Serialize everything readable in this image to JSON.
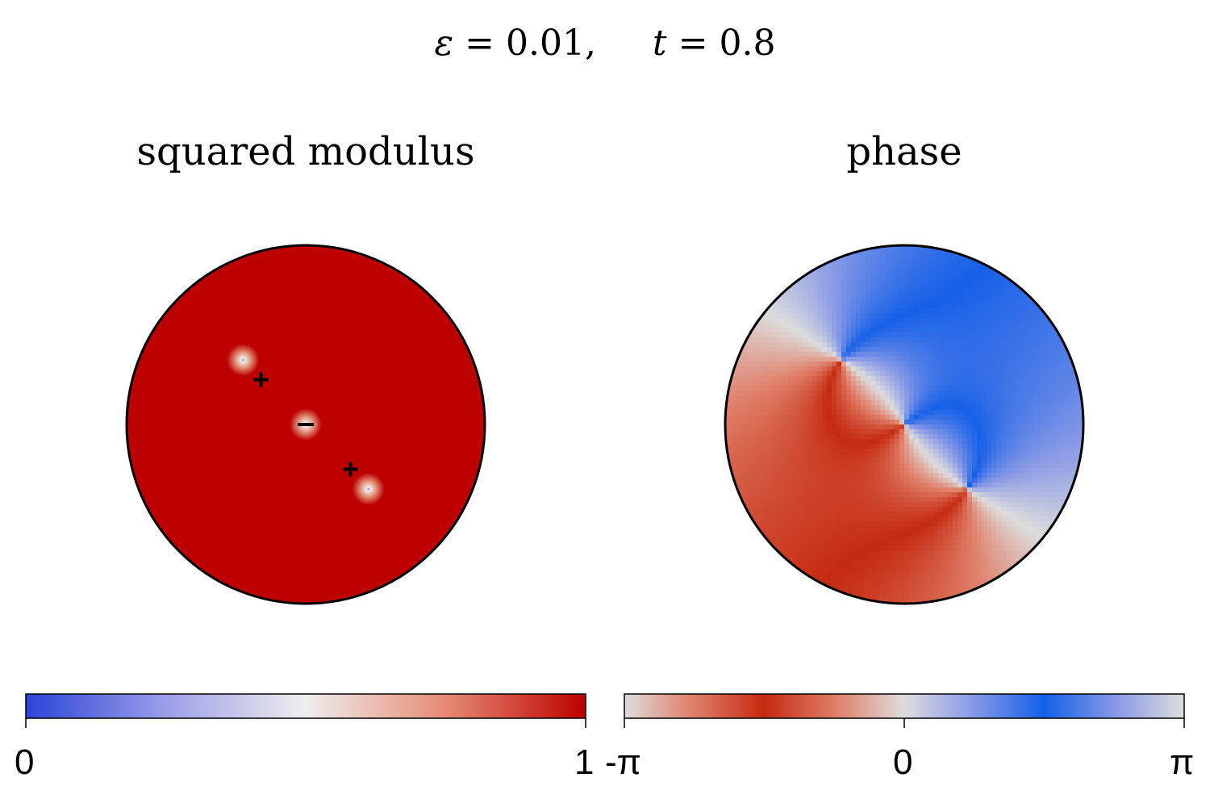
{
  "title": {
    "eps_symbol": "ε",
    "eps_value": "0.01,",
    "t_symbol": "t",
    "t_value": "0.8",
    "equals": "="
  },
  "chart_data": [
    {
      "type": "heatmap",
      "title": "squared modulus",
      "domain": "disk",
      "colorbar": {
        "range": [
          0,
          1
        ],
        "ticks": [
          0,
          1
        ],
        "tick_labels": [
          "0",
          "1"
        ],
        "colors": [
          "#2a44d8",
          "#eeeeee",
          "#bd0000"
        ]
      },
      "vortices": [
        {
          "x": -0.35,
          "y": 0.36,
          "marker": "none"
        },
        {
          "x": -0.25,
          "y": 0.25,
          "marker": "+"
        },
        {
          "x": 0.0,
          "y": 0.0,
          "marker": "−"
        },
        {
          "x": 0.25,
          "y": -0.25,
          "marker": "+"
        },
        {
          "x": 0.35,
          "y": -0.36,
          "marker": "none"
        }
      ]
    },
    {
      "type": "heatmap",
      "title": "phase",
      "domain": "disk",
      "colorbar": {
        "range": [
          -3.14159,
          3.14159
        ],
        "ticks": [
          -3.14159,
          0,
          3.14159
        ],
        "tick_labels": [
          "-π",
          "0",
          "π"
        ],
        "colors": [
          "#dddddd",
          "#c52a10",
          "#dddddd",
          "#1560e8",
          "#dddddd"
        ]
      }
    }
  ],
  "colors": {
    "deep_red": "#bd0000",
    "phase_blue": "#1560e8",
    "phase_red": "#c52a10"
  }
}
